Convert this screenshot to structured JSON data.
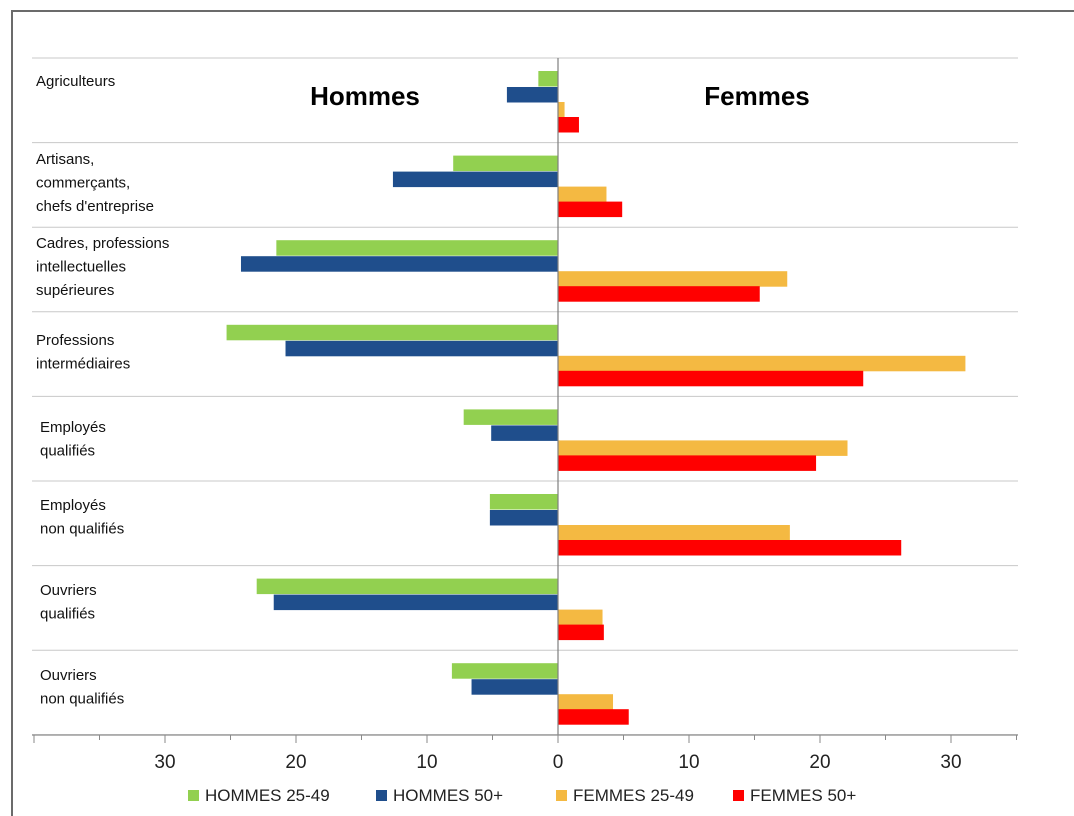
{
  "chart_data": {
    "type": "bar",
    "orientation": "horizontal",
    "layout": "diverging",
    "side_titles": {
      "left": "Hommes",
      "right": "Femmes"
    },
    "categories": [
      [
        "Agriculteurs"
      ],
      [
        "Artisans,",
        "commerçants,",
        "chefs d'entreprise"
      ],
      [
        "Cadres, professions",
        "intellectuelles",
        "supérieures"
      ],
      [
        "Professions",
        "intermédiaires"
      ],
      [
        "Employés",
        "qualifiés"
      ],
      [
        "Employés",
        "non qualifiés"
      ],
      [
        "Ouvriers",
        "qualifiés"
      ],
      [
        "Ouvriers",
        "non qualifiés"
      ]
    ],
    "series": [
      {
        "name": "HOMMES 25-49",
        "side": "left",
        "color": "#92d050",
        "values": [
          1.5,
          8,
          21.5,
          25.3,
          7.2,
          5.2,
          23,
          8.1
        ]
      },
      {
        "name": "HOMMES 50+",
        "side": "left",
        "color": "#1f4e8c",
        "values": [
          3.9,
          12.6,
          24.2,
          20.8,
          5.1,
          5.2,
          21.7,
          6.6
        ]
      },
      {
        "name": "FEMMES 25-49",
        "side": "right",
        "color": "#f4b942",
        "values": [
          0.5,
          3.7,
          17.5,
          31.1,
          22.1,
          17.7,
          3.4,
          4.2
        ]
      },
      {
        "name": "FEMMES 50+",
        "side": "right",
        "color": "#ff0000",
        "values": [
          1.6,
          4.9,
          15.4,
          23.3,
          19.7,
          26.2,
          3.5,
          5.4
        ]
      }
    ],
    "xlim": [
      -40,
      35
    ],
    "xticks": [
      -30,
      -20,
      -10,
      0,
      10,
      20,
      30
    ],
    "xtick_labels": [
      "30",
      "20",
      "10",
      "0",
      "10",
      "20",
      "30"
    ],
    "grid": true,
    "legend_position": "bottom"
  }
}
